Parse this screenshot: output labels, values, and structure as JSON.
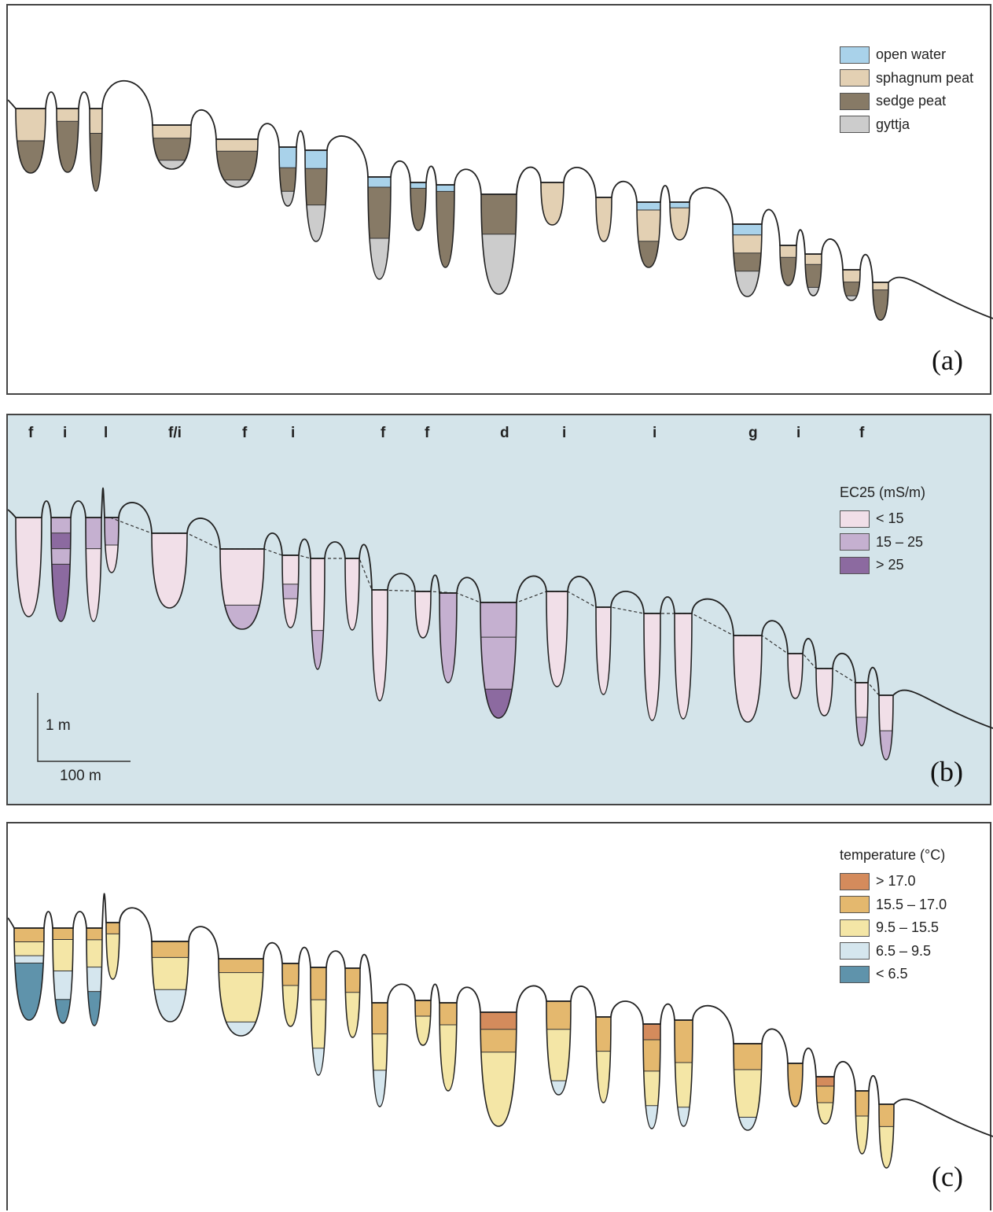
{
  "panels": {
    "a": {
      "label": "(a)",
      "legend": [
        {
          "label": "open water",
          "color": "#a9d2ea"
        },
        {
          "label": "sphagnum peat",
          "color": "#e3d0b3"
        },
        {
          "label": "sedge peat",
          "color": "#877a66"
        },
        {
          "label": "gyttja",
          "color": "#cccccc"
        }
      ]
    },
    "b": {
      "label": "(b)",
      "legend_title": "EC25 (mS/m)",
      "legend": [
        {
          "label": "< 15",
          "color": "#f1dfe8"
        },
        {
          "label": "15 – 25",
          "color": "#c5b0d0"
        },
        {
          "label": "> 25",
          "color": "#8c6aa0"
        }
      ],
      "type_labels": [
        "f",
        "i",
        "l",
        "f/i",
        "f",
        "i",
        "f",
        "f",
        "d",
        "i",
        "i",
        "g",
        "i",
        "f"
      ],
      "scale": {
        "vertical": "1 m",
        "horizontal": "100 m"
      }
    },
    "c": {
      "label": "(c)",
      "legend_title": "temperature (°C)",
      "legend": [
        {
          "label": "> 17.0",
          "color": "#d48b5c"
        },
        {
          "label": "15.5 – 17.0",
          "color": "#e4b86e"
        },
        {
          "label": "9.5 – 15.5",
          "color": "#f4e6a6"
        },
        {
          "label": "6.5 – 9.5",
          "color": "#d5e6ee"
        },
        {
          "label": "< 6.5",
          "color": "#5f93ab"
        }
      ]
    }
  },
  "colors": {
    "open_water": "#a9d2ea",
    "sphagnum": "#e3d0b3",
    "sedge": "#877a66",
    "gyttja": "#cccccc",
    "ec_low": "#f1dfe8",
    "ec_mid": "#c5b0d0",
    "ec_high": "#8c6aa0",
    "groundwater": "#d4e4ea",
    "t_gt17": "#d48b5c",
    "t_15_17": "#e4b86e",
    "t_9_15": "#f4e6a6",
    "t_6_9": "#d5e6ee",
    "t_lt6": "#5f93ab"
  }
}
